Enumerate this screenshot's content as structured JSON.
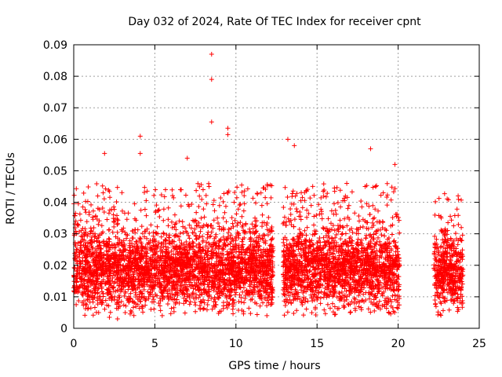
{
  "chart_data": {
    "type": "scatter",
    "title": "Day 032 of 2024, Rate Of TEC Index for receiver cpnt",
    "xlabel": "GPS time / hours",
    "ylabel": "ROTI / TECUs",
    "xlim": [
      0,
      25
    ],
    "ylim": [
      0,
      0.09
    ],
    "xticks": [
      0,
      5,
      10,
      15,
      20,
      25
    ],
    "xtick_labels": [
      "0",
      "5",
      "10",
      "15",
      "20",
      "25"
    ],
    "yticks": [
      0,
      0.01,
      0.02,
      0.03,
      0.04,
      0.05,
      0.06,
      0.07,
      0.08,
      0.09
    ],
    "ytick_labels": [
      "0",
      "0.01",
      "0.02",
      "0.03",
      "0.04",
      "0.05",
      "0.06",
      "0.07",
      "0.08",
      "0.09"
    ],
    "grid": true,
    "marker": "+",
    "color": "#ff0000",
    "series": [
      {
        "name": "ROTI",
        "segments": [
          {
            "x_start": 0.0,
            "x_end": 12.3,
            "typical_low": 0.008,
            "typical_high": 0.03
          },
          {
            "x_start": 12.9,
            "x_end": 20.1,
            "typical_low": 0.008,
            "typical_high": 0.03
          },
          {
            "x_start": 22.2,
            "x_end": 24.0,
            "typical_low": 0.008,
            "typical_high": 0.028
          }
        ],
        "notable_points": [
          {
            "x": 8.5,
            "y": 0.087
          },
          {
            "x": 8.5,
            "y": 0.079
          },
          {
            "x": 8.5,
            "y": 0.0655
          },
          {
            "x": 9.5,
            "y": 0.0635
          },
          {
            "x": 9.5,
            "y": 0.0615
          },
          {
            "x": 4.1,
            "y": 0.061
          },
          {
            "x": 13.2,
            "y": 0.06
          },
          {
            "x": 13.6,
            "y": 0.058
          },
          {
            "x": 18.3,
            "y": 0.057
          },
          {
            "x": 1.9,
            "y": 0.0555
          },
          {
            "x": 4.1,
            "y": 0.0555
          },
          {
            "x": 7.0,
            "y": 0.054
          },
          {
            "x": 19.8,
            "y": 0.052
          },
          {
            "x": 2.2,
            "y": 0.0035
          },
          {
            "x": 2.7,
            "y": 0.003
          },
          {
            "x": 22.6,
            "y": 0.0045
          }
        ]
      }
    ]
  }
}
